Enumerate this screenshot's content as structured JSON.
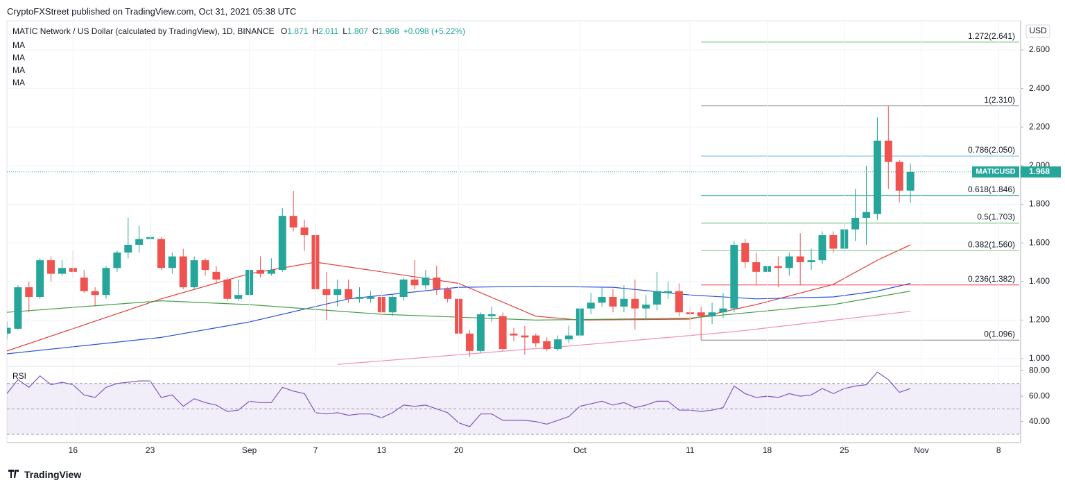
{
  "header": {
    "publisher": "CryptoFXStreet published on TradingView.com, Oct 31, 2021 05:38 UTC"
  },
  "footer": {
    "brand": "TradingView"
  },
  "chart_data": [
    {
      "type": "candlestick",
      "title": "MATIC Network / US Dollar (calculated by TradingView), 1D, BINANCE",
      "ohlc_legend": [
        {
          "key": "O",
          "value": "1.871"
        },
        {
          "key": "H",
          "value": "2.011"
        },
        {
          "key": "L",
          "value": "1.807"
        },
        {
          "key": "C",
          "value": "1.968"
        }
      ],
      "change": "+0.098 (+5.22%)",
      "currency": "USD",
      "up_color": "#26a69a",
      "down_color": "#ef5350",
      "categories": [
        "Aug 10",
        "Aug 11",
        "Aug 12",
        "Aug 13",
        "Aug 14",
        "Aug 15",
        "Aug 16",
        "Aug 17",
        "Aug 18",
        "Aug 19",
        "Aug 20",
        "Aug 21",
        "Aug 22",
        "Aug 23",
        "Aug 24",
        "Aug 25",
        "Aug 26",
        "Aug 27",
        "Aug 28",
        "Aug 29",
        "Aug 30",
        "Aug 31",
        "Sep 1",
        "Sep 2",
        "Sep 3",
        "Sep 4",
        "Sep 5",
        "Sep 6",
        "Sep 7",
        "Sep 8",
        "Sep 9",
        "Sep 10",
        "Sep 11",
        "Sep 12",
        "Sep 13",
        "Sep 14",
        "Sep 15",
        "Sep 16",
        "Sep 17",
        "Sep 18",
        "Sep 19",
        "Sep 20",
        "Sep 21",
        "Sep 22",
        "Sep 23",
        "Sep 24",
        "Sep 25",
        "Sep 26",
        "Sep 27",
        "Sep 28",
        "Sep 29",
        "Sep 30",
        "Oct 1",
        "Oct 2",
        "Oct 3",
        "Oct 4",
        "Oct 5",
        "Oct 6",
        "Oct 7",
        "Oct 8",
        "Oct 9",
        "Oct 10",
        "Oct 11",
        "Oct 12",
        "Oct 13",
        "Oct 14",
        "Oct 15",
        "Oct 16",
        "Oct 17",
        "Oct 18",
        "Oct 19",
        "Oct 20",
        "Oct 21",
        "Oct 22",
        "Oct 23",
        "Oct 24",
        "Oct 25",
        "Oct 26",
        "Oct 27",
        "Oct 28",
        "Oct 29",
        "Oct 30",
        "Oct 31"
      ],
      "open": [
        1.13,
        1.155,
        1.37,
        1.32,
        1.51,
        1.44,
        1.47,
        1.42,
        1.35,
        1.33,
        1.47,
        1.55,
        1.59,
        1.62,
        1.62,
        1.47,
        1.53,
        1.37,
        1.51,
        1.45,
        1.41,
        1.31,
        1.33,
        1.46,
        1.44,
        1.46,
        1.74,
        1.68,
        1.64,
        1.36,
        1.33,
        1.36,
        1.31,
        1.31,
        1.32,
        1.24,
        1.32,
        1.41,
        1.38,
        1.42,
        1.36,
        1.31,
        1.13,
        1.04,
        1.22,
        1.22,
        1.13,
        1.12,
        1.12,
        1.09,
        1.05,
        1.1,
        1.12,
        1.26,
        1.29,
        1.32,
        1.27,
        1.31,
        1.26,
        1.28,
        1.34,
        1.35,
        1.24,
        1.24,
        1.22,
        1.24,
        1.26,
        1.6,
        1.5,
        1.45,
        1.48,
        1.47,
        1.53,
        1.5,
        1.51,
        1.64,
        1.57,
        1.67,
        1.73,
        1.75,
        2.13,
        2.02,
        1.871
      ],
      "high": [
        1.19,
        1.38,
        1.4,
        1.52,
        1.53,
        1.51,
        1.56,
        1.46,
        1.37,
        1.48,
        1.56,
        1.73,
        1.69,
        1.7,
        1.63,
        1.55,
        1.57,
        1.53,
        1.52,
        1.48,
        1.42,
        1.41,
        1.47,
        1.53,
        1.52,
        1.78,
        1.87,
        1.72,
        1.7,
        1.45,
        1.41,
        1.41,
        1.37,
        1.35,
        1.35,
        1.33,
        1.42,
        1.51,
        1.46,
        1.48,
        1.37,
        1.32,
        1.15,
        1.24,
        1.27,
        1.24,
        1.16,
        1.17,
        1.13,
        1.11,
        1.12,
        1.17,
        1.27,
        1.34,
        1.37,
        1.36,
        1.38,
        1.41,
        1.33,
        1.45,
        1.4,
        1.39,
        1.27,
        1.27,
        1.29,
        1.34,
        1.61,
        1.62,
        1.55,
        1.63,
        1.53,
        1.55,
        1.65,
        1.57,
        1.66,
        1.66,
        1.7,
        1.88,
        2.0,
        2.25,
        2.31,
        2.03,
        2.011
      ],
      "low": [
        1.1,
        1.15,
        1.24,
        1.31,
        1.4,
        1.43,
        1.42,
        1.34,
        1.27,
        1.31,
        1.45,
        1.52,
        1.55,
        1.57,
        1.46,
        1.44,
        1.36,
        1.36,
        1.43,
        1.39,
        1.3,
        1.3,
        1.32,
        1.42,
        1.43,
        1.45,
        1.66,
        1.56,
        1.06,
        1.2,
        1.27,
        1.29,
        1.29,
        1.29,
        1.21,
        1.22,
        1.3,
        1.36,
        1.36,
        1.33,
        1.29,
        1.09,
        1.01,
        1.03,
        1.19,
        1.04,
        1.09,
        1.02,
        1.06,
        1.04,
        1.04,
        1.08,
        1.11,
        1.23,
        1.27,
        1.24,
        1.24,
        1.15,
        1.2,
        1.25,
        1.31,
        1.22,
        1.15,
        1.096,
        1.18,
        1.21,
        1.24,
        1.47,
        1.38,
        1.4,
        1.37,
        1.43,
        1.38,
        1.46,
        1.49,
        1.55,
        1.55,
        1.61,
        1.59,
        1.72,
        1.88,
        1.81,
        1.807
      ],
      "close": [
        1.16,
        1.37,
        1.32,
        1.51,
        1.44,
        1.47,
        1.45,
        1.35,
        1.33,
        1.47,
        1.55,
        1.59,
        1.62,
        1.63,
        1.47,
        1.53,
        1.37,
        1.51,
        1.46,
        1.41,
        1.31,
        1.33,
        1.46,
        1.44,
        1.46,
        1.74,
        1.68,
        1.64,
        1.36,
        1.33,
        1.36,
        1.31,
        1.32,
        1.32,
        1.24,
        1.32,
        1.41,
        1.38,
        1.42,
        1.36,
        1.31,
        1.13,
        1.04,
        1.23,
        1.23,
        1.05,
        1.12,
        1.11,
        1.08,
        1.05,
        1.1,
        1.12,
        1.26,
        1.29,
        1.32,
        1.27,
        1.31,
        1.26,
        1.28,
        1.35,
        1.35,
        1.24,
        1.23,
        1.22,
        1.24,
        1.26,
        1.59,
        1.5,
        1.45,
        1.48,
        1.47,
        1.53,
        1.5,
        1.51,
        1.64,
        1.57,
        1.67,
        1.73,
        1.76,
        2.13,
        2.02,
        1.871,
        1.968
      ],
      "xlim": [
        "Aug 10",
        "Nov 10"
      ],
      "xticks": [
        {
          "value": "Aug 16",
          "label": "16"
        },
        {
          "value": "Aug 23",
          "label": "23"
        },
        {
          "value": "Sep 1",
          "label": "Sep"
        },
        {
          "value": "Sep 7",
          "label": "7"
        },
        {
          "value": "Sep 13",
          "label": "13"
        },
        {
          "value": "Sep 20",
          "label": "20"
        },
        {
          "value": "Oct 1",
          "label": "Oct"
        },
        {
          "value": "Oct 11",
          "label": "11"
        },
        {
          "value": "Oct 18",
          "label": "18"
        },
        {
          "value": "Oct 25",
          "label": "25"
        },
        {
          "value": "Nov 1",
          "label": "Nov"
        },
        {
          "value": "Nov 8",
          "label": "8"
        }
      ],
      "ylim": [
        0.964,
        2.751
      ],
      "yticks": [
        {
          "value": 1,
          "label": "1.000"
        },
        {
          "value": 1.2,
          "label": "1.200"
        },
        {
          "value": 1.4,
          "label": "1.400"
        },
        {
          "value": 1.6,
          "label": "1.600"
        },
        {
          "value": 1.8,
          "label": "1.800"
        },
        {
          "value": 2,
          "label": "2.000"
        },
        {
          "value": 2.2,
          "label": "2.200"
        },
        {
          "value": 2.4,
          "label": "2.400"
        },
        {
          "value": 2.6,
          "label": "2.600"
        }
      ],
      "grid": true,
      "series": [
        {
          "name": "MA",
          "color": "#e53935",
          "x": [
            "Aug 10",
            "Aug 24",
            "Sep 1",
            "Sep 7",
            "Sep 13",
            "Sep 20",
            "Sep 27",
            "Oct 1",
            "Oct 11",
            "Oct 17",
            "Oct 24",
            "Oct 28",
            "Oct 31"
          ],
          "values": [
            1.04,
            1.31,
            1.44,
            1.5,
            1.45,
            1.39,
            1.22,
            1.2,
            1.205,
            1.28,
            1.385,
            1.51,
            1.59
          ]
        },
        {
          "name": "MA",
          "color": "#2a52d6",
          "x": [
            "Aug 10",
            "Aug 24",
            "Sep 1",
            "Sep 10",
            "Sep 20",
            "Sep 27",
            "Oct 4",
            "Oct 11",
            "Oct 17",
            "Oct 24",
            "Oct 28",
            "Oct 31"
          ],
          "values": [
            1.025,
            1.11,
            1.19,
            1.31,
            1.37,
            1.375,
            1.37,
            1.33,
            1.31,
            1.32,
            1.35,
            1.39
          ]
        },
        {
          "name": "MA",
          "color": "#43a047",
          "x": [
            "Aug 10",
            "Aug 24",
            "Sep 1",
            "Sep 13",
            "Sep 27",
            "Oct 11",
            "Oct 24",
            "Oct 31"
          ],
          "values": [
            1.24,
            1.3,
            1.28,
            1.23,
            1.2,
            1.21,
            1.28,
            1.35
          ]
        },
        {
          "name": "MA",
          "color": "#f48fb1",
          "x": [
            "Sep 9",
            "Oct 1",
            "Oct 15",
            "Oct 31"
          ],
          "values": [
            0.97,
            1.07,
            1.14,
            1.245
          ]
        }
      ],
      "fib_start": "Oct 12",
      "fib_levels": [
        {
          "value": 2.641,
          "label": "1.272(2.641)",
          "color": "#4caf50"
        },
        {
          "value": 2.31,
          "label": "1(2.310)",
          "color": "#787b86"
        },
        {
          "value": 2.05,
          "label": "0.786(2.050)",
          "color": "#64b5f6"
        },
        {
          "value": 1.846,
          "label": "0.618(1.846)",
          "color": "#089981"
        },
        {
          "value": 1.703,
          "label": "0.5(1.703)",
          "color": "#4caf50"
        },
        {
          "value": 1.56,
          "label": "0.382(1.560)",
          "color": "#81c784"
        },
        {
          "value": 1.382,
          "label": "0.236(1.382)",
          "color": "#f23645"
        },
        {
          "value": 1.096,
          "label": "0(1.096)",
          "color": "#787b86"
        }
      ],
      "last_price": {
        "symbol": "MATICUSD",
        "value": 1.968,
        "label": "1.968",
        "color": "#26a69a"
      }
    },
    {
      "type": "line",
      "title": "RSI",
      "color": "#7e57c2",
      "values": [
        62,
        73,
        67,
        76,
        69,
        71,
        69,
        61,
        59,
        67,
        70,
        71,
        72,
        72,
        59,
        61,
        52,
        58,
        55,
        53,
        48,
        49,
        56,
        55,
        55,
        67,
        64,
        62,
        47,
        46,
        47,
        45,
        46,
        46,
        43,
        47,
        53,
        52,
        53,
        50,
        47,
        39,
        36,
        46,
        46,
        41,
        41,
        41,
        40,
        38,
        41,
        44,
        52,
        54,
        56,
        53,
        55,
        51,
        53,
        56,
        56,
        49,
        49,
        48,
        49,
        51,
        68,
        62,
        59,
        60,
        59,
        62,
        60,
        61,
        66,
        62,
        66,
        68,
        69,
        79,
        73,
        63,
        66
      ],
      "ylim": [
        24,
        83
      ],
      "yticks": [
        {
          "value": 40,
          "label": "40.00"
        },
        {
          "value": 60,
          "label": "60.00"
        },
        {
          "value": 80,
          "label": "80.00"
        }
      ],
      "levels": [
        70,
        50,
        30
      ],
      "band_color": "rgba(126,87,194,0.1)"
    }
  ]
}
